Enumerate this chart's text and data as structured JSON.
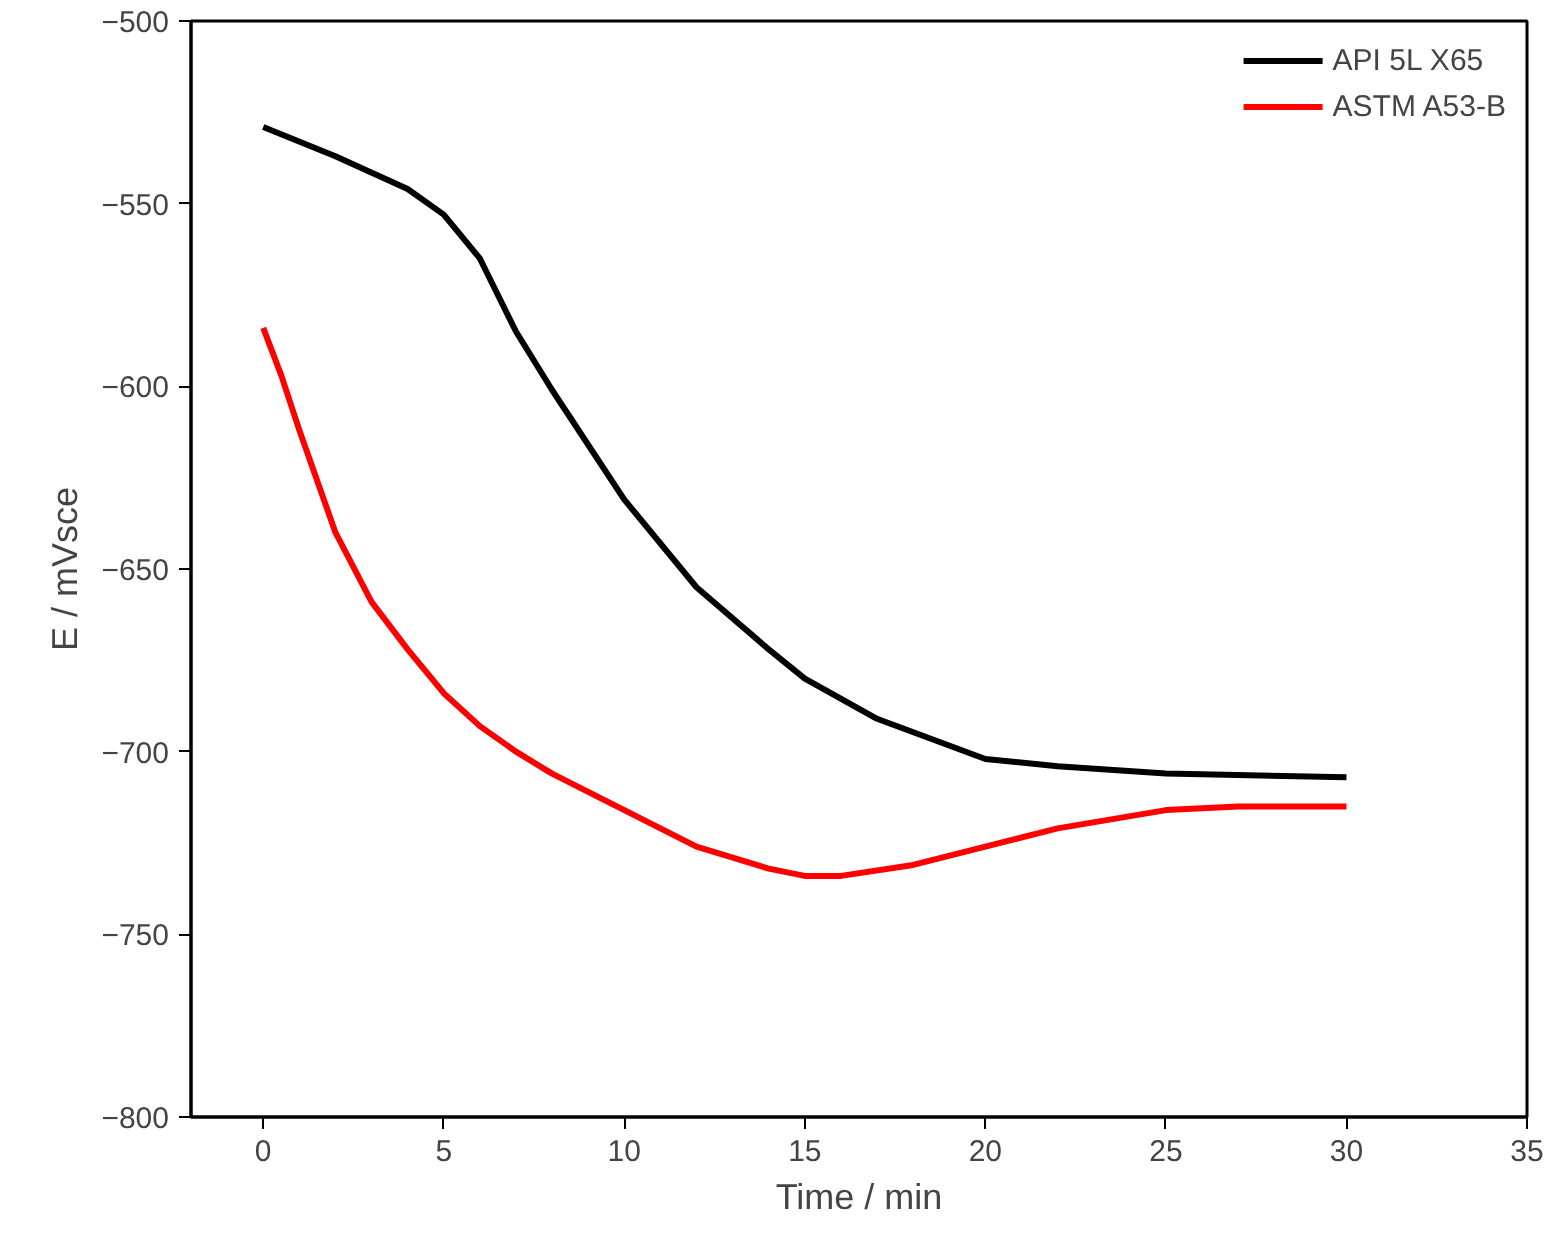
{
  "chart_data": {
    "type": "line",
    "xlabel": "Time / min",
    "ylabel": "E / mVsce",
    "xlim": [
      -2,
      35
    ],
    "ylim": [
      -800,
      -500
    ],
    "xticks": [
      0,
      5,
      10,
      15,
      20,
      25,
      30,
      35
    ],
    "yticks": [
      -800,
      -750,
      -700,
      -650,
      -600,
      -550,
      -500
    ],
    "grid": false,
    "legend": "top right",
    "line_style": "solid",
    "marker": "none",
    "series": [
      {
        "name": "API 5L X65",
        "color": "#000000",
        "x": [
          0,
          2,
          4,
          5,
          6,
          7,
          8,
          10,
          12,
          14,
          15,
          17,
          20,
          22,
          25,
          30
        ],
        "values": [
          -529,
          -537,
          -546,
          -553,
          -565,
          -585,
          -601,
          -631,
          -655,
          -672,
          -680,
          -691,
          -702,
          -704,
          -706,
          -707
        ]
      },
      {
        "name": "ASTM A53-B",
        "color": "#ff0000",
        "x": [
          0,
          0.5,
          1,
          2,
          3,
          4,
          5,
          6,
          7,
          8,
          10,
          12,
          14,
          15,
          16,
          18,
          20,
          22,
          25,
          27,
          30
        ],
        "values": [
          -584,
          -597,
          -612,
          -640,
          -659,
          -672,
          -684,
          -693,
          -700,
          -706,
          -716,
          -726,
          -732,
          -734,
          -734,
          -731,
          -726,
          -721,
          -716,
          -715,
          -715
        ]
      }
    ]
  }
}
